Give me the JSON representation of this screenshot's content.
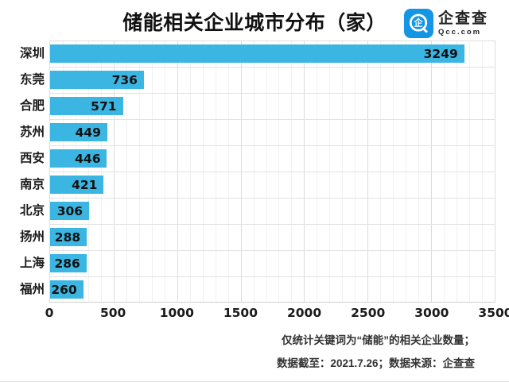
{
  "header": {
    "title": "储能相关企业城市分布（家）",
    "logo": {
      "name": "企查查",
      "domain": "Qcc.com",
      "glyph": "企",
      "brand_color": "#1495e6"
    }
  },
  "chart_data": {
    "type": "bar",
    "orientation": "horizontal",
    "title": "储能相关企业城市分布（家）",
    "categories": [
      "深圳",
      "东莞",
      "合肥",
      "苏州",
      "西安",
      "南京",
      "北京",
      "扬州",
      "上海",
      "福州"
    ],
    "values": [
      3249,
      736,
      571,
      449,
      446,
      421,
      306,
      288,
      286,
      260
    ],
    "xlabel": "",
    "ylabel": "",
    "xlim": [
      0,
      3500
    ],
    "x_ticks": [
      0,
      500,
      1000,
      1500,
      2000,
      2500,
      3000,
      3500
    ],
    "minor_grid_step": 100,
    "grid": true,
    "legend": false,
    "bar_color": "#3bb5e2",
    "value_labels": "inside-end"
  },
  "footnote": {
    "line1": "仅统计关键词为“储能”的相关企业数量；",
    "line2": "数据截至：2021.7.26；数据来源：企查查"
  }
}
